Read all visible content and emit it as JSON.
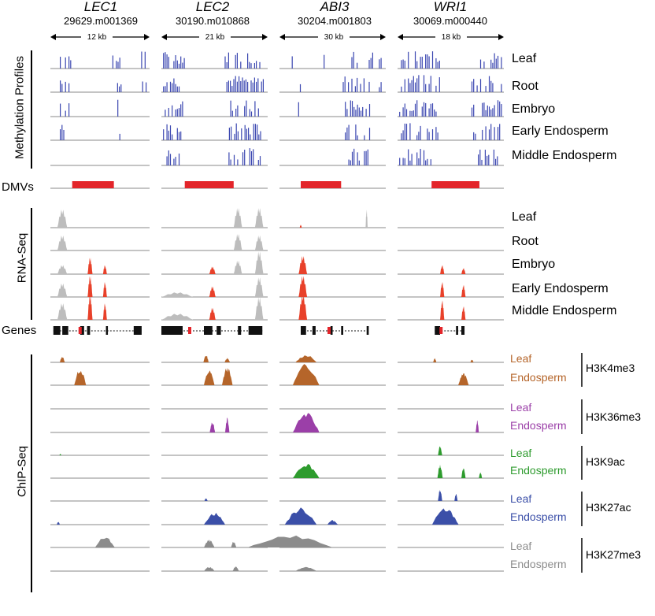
{
  "genes": [
    {
      "name": "LEC1",
      "id": "29629.m001369",
      "size": "12 kb"
    },
    {
      "name": "LEC2",
      "id": "30190.m010868",
      "size": "21 kb"
    },
    {
      "name": "ABI3",
      "id": "30204.m001803",
      "size": "30 kb"
    },
    {
      "name": "WRI1",
      "id": "30069.m000440",
      "size": "18 kb"
    }
  ],
  "sections": {
    "methylation": "Methylation Profiles",
    "dmvs": "DMVs",
    "rnaseq": "RNA-Seq",
    "genes": "Genes",
    "chipseq": "ChIP-Seq"
  },
  "methylation_samples": [
    "Leaf",
    "Root",
    "Embryo",
    "Early Endosperm",
    "Middle Endosperm"
  ],
  "rnaseq_samples": [
    "Leaf",
    "Root",
    "Embryo",
    "Early Endosperm",
    "Middle Endosperm"
  ],
  "chip_marks": [
    {
      "mark": "H3K4me3",
      "leaf": "Leaf",
      "endosperm": "Endosperm",
      "color": "#b5652a"
    },
    {
      "mark": "H3K36me3",
      "leaf": "Leaf",
      "endosperm": "Endosperm",
      "color": "#9b3fa8"
    },
    {
      "mark": "H3K9ac",
      "leaf": "Leaf",
      "endosperm": "Endosperm",
      "color": "#2e9b2e"
    },
    {
      "mark": "H3K27ac",
      "leaf": "Leaf",
      "endosperm": "Endosperm",
      "color": "#3b4fa8"
    },
    {
      "mark": "H3K27me3",
      "leaf": "Leaf",
      "endosperm": "Endosperm",
      "color": "#8c8c8c"
    }
  ],
  "colors": {
    "methylation": "#3a46b0",
    "dmv": "#e3252a",
    "rna_grey": "#bdbdbd",
    "rna_red": "#e8412a",
    "baseline": "#8a8a8a",
    "gene": "#111111"
  }
}
